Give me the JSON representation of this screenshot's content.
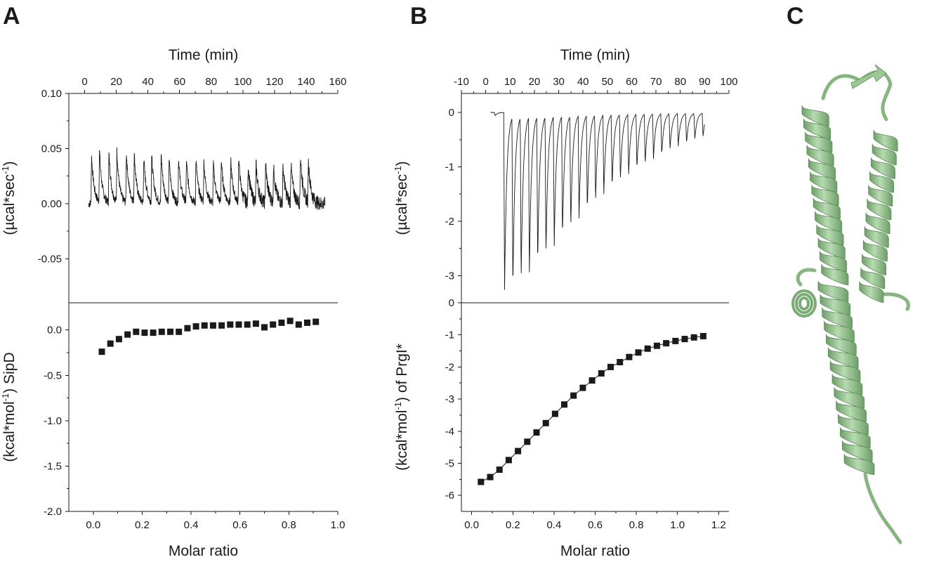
{
  "figure": {
    "panel_letters": [
      "A",
      "B",
      "C"
    ]
  },
  "chart_data": [
    {
      "panel": "A",
      "type": "line",
      "subplot": "raw-thermogram",
      "xlabel": "Time (min)",
      "ylabel_base": "(µcal*sec",
      "ylabel_sup": "-1",
      "ylabel_tail": ")",
      "xlim": [
        -10,
        160
      ],
      "ylim": [
        -0.09,
        0.1
      ],
      "xticks": [
        0,
        20,
        40,
        60,
        80,
        100,
        120,
        140,
        160
      ],
      "xtick_labels": [
        "0",
        "20",
        "40",
        "60",
        "80",
        "100",
        "120",
        "140",
        "160"
      ],
      "yticks": [
        -0.05,
        0.0,
        0.05,
        0.1
      ],
      "ytick_labels": [
        "-0.05",
        "0.00",
        "0.05",
        "0.10"
      ],
      "injection_times": [
        4,
        9,
        15,
        20,
        26,
        31,
        37,
        42,
        48,
        53,
        59,
        64,
        70,
        75,
        81,
        86,
        92,
        97,
        103,
        108,
        114,
        119,
        125,
        130,
        136,
        141
      ],
      "peak_heights": [
        0.044,
        0.048,
        0.045,
        0.047,
        0.046,
        0.044,
        0.042,
        0.043,
        0.045,
        0.04,
        0.041,
        0.038,
        0.04,
        0.037,
        0.036,
        0.039,
        0.038,
        0.04,
        0.035,
        0.034,
        0.036,
        0.033,
        0.034,
        0.036,
        0.044,
        0.038
      ],
      "trace_end_time": 152
    },
    {
      "panel": "A",
      "type": "scatter",
      "subplot": "integrated-heats",
      "xlabel": "Molar ratio",
      "ylabel_base": "(kcal*mol",
      "ylabel_sup": "-1",
      "ylabel_tail": ")  SipD",
      "xlim": [
        -0.1,
        1.0
      ],
      "ylim": [
        -2.0,
        0.3
      ],
      "xticks": [
        0.0,
        0.2,
        0.4,
        0.6,
        0.8,
        1.0
      ],
      "xtick_labels": [
        "0.0",
        "0.2",
        "0.4",
        "0.6",
        "0.8",
        "1.0"
      ],
      "yticks": [
        -2.0,
        -1.5,
        -1.0,
        -0.5,
        0.0
      ],
      "ytick_labels": [
        "-2.0",
        "-1.5",
        "-1.0",
        "-0.5",
        "0.0"
      ],
      "x": [
        0.035,
        0.07,
        0.105,
        0.14,
        0.175,
        0.21,
        0.245,
        0.28,
        0.315,
        0.35,
        0.385,
        0.42,
        0.455,
        0.49,
        0.525,
        0.56,
        0.595,
        0.63,
        0.665,
        0.7,
        0.735,
        0.77,
        0.805,
        0.84,
        0.875,
        0.91
      ],
      "y": [
        -0.24,
        -0.15,
        -0.1,
        -0.05,
        -0.02,
        -0.03,
        -0.03,
        -0.02,
        -0.02,
        -0.02,
        0.02,
        0.04,
        0.05,
        0.05,
        0.05,
        0.06,
        0.06,
        0.06,
        0.07,
        0.03,
        0.06,
        0.08,
        0.1,
        0.06,
        0.08,
        0.09
      ]
    },
    {
      "panel": "B",
      "type": "line",
      "subplot": "raw-thermogram",
      "xlabel": "Time (min)",
      "ylabel_base": "(µcal*sec",
      "ylabel_sup": "-1",
      "ylabel_tail": ")",
      "xlim": [
        -10,
        100
      ],
      "ylim": [
        -3.5,
        0.35
      ],
      "xticks": [
        -10,
        0,
        10,
        20,
        30,
        40,
        50,
        60,
        70,
        80,
        90,
        100
      ],
      "xtick_labels": [
        "-10",
        "0",
        "10",
        "20",
        "30",
        "40",
        "50",
        "60",
        "70",
        "80",
        "90",
        "100"
      ],
      "yticks": [
        -3,
        -2,
        -1,
        0
      ],
      "ytick_labels": [
        "-3",
        "-2",
        "-1",
        "0"
      ],
      "injection_times": [
        3.5,
        7.4,
        10.8,
        14.2,
        17.6,
        21.0,
        24.4,
        27.8,
        31.2,
        34.6,
        38.0,
        41.4,
        44.8,
        48.2,
        51.6,
        55.0,
        58.4,
        61.8,
        65.2,
        68.6,
        72.0,
        75.4,
        78.8,
        82.2,
        85.6,
        89.0
      ],
      "peak_heights": [
        -0.06,
        -3.3,
        -3.2,
        -3.05,
        -2.9,
        -2.75,
        -2.58,
        -2.42,
        -2.25,
        -2.08,
        -1.92,
        -1.77,
        -1.62,
        -1.48,
        -1.35,
        -1.23,
        -1.12,
        -1.02,
        -0.93,
        -0.84,
        -0.76,
        -0.68,
        -0.61,
        -0.55,
        -0.49,
        -0.43
      ],
      "trace_end_time": 90
    },
    {
      "panel": "B",
      "type": "scatter",
      "subplot": "integrated-heats",
      "xlabel": "Molar ratio",
      "ylabel_base": "(kcal*mol",
      "ylabel_sup": "-1",
      "ylabel_tail": ") of PrgI*",
      "xlim": [
        -0.05,
        1.25
      ],
      "ylim": [
        -6.5,
        0.0
      ],
      "xticks": [
        0.0,
        0.2,
        0.4,
        0.6,
        0.8,
        1.0,
        1.2
      ],
      "xtick_labels": [
        "0.0",
        "0.2",
        "0.4",
        "0.6",
        "0.8",
        "1.0",
        "1.2"
      ],
      "yticks": [
        -6,
        -5,
        -4,
        -3,
        -2,
        -1,
        0
      ],
      "ytick_labels": [
        "-6",
        "-5",
        "-4",
        "-3",
        "-2",
        "-1",
        "0"
      ],
      "x": [
        0.045,
        0.09,
        0.135,
        0.18,
        0.225,
        0.27,
        0.315,
        0.36,
        0.405,
        0.45,
        0.495,
        0.54,
        0.585,
        0.63,
        0.675,
        0.72,
        0.765,
        0.81,
        0.855,
        0.9,
        0.945,
        0.99,
        1.035,
        1.08,
        1.125
      ],
      "y": [
        -5.58,
        -5.43,
        -5.2,
        -4.9,
        -4.62,
        -4.33,
        -4.04,
        -3.75,
        -3.46,
        -3.17,
        -2.89,
        -2.65,
        -2.42,
        -2.2,
        -2.0,
        -1.85,
        -1.69,
        -1.55,
        -1.43,
        -1.34,
        -1.26,
        -1.19,
        -1.13,
        -1.08,
        -1.04
      ]
    }
  ]
}
